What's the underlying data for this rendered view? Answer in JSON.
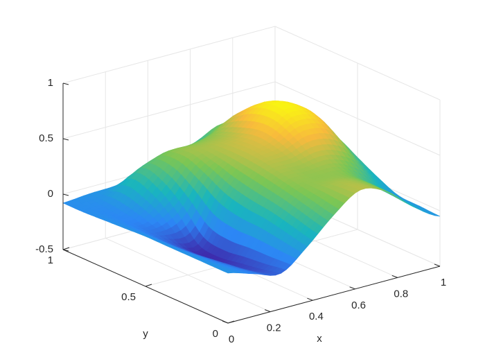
{
  "chart_data": {
    "type": "surface",
    "title": "",
    "xlabel": "x",
    "ylabel": "y",
    "zlabel": "",
    "xlim": [
      0,
      1
    ],
    "ylim": [
      0,
      1
    ],
    "zlim": [
      -0.5,
      1
    ],
    "x_ticks": [
      "0",
      "0.2",
      "0.4",
      "0.6",
      "0.8",
      "1"
    ],
    "y_ticks": [
      "0",
      "0.5",
      "1"
    ],
    "z_ticks": [
      "-0.5",
      "0",
      "0.5",
      "1"
    ],
    "grid": true,
    "colormap": "parula",
    "colors": {
      "low": "#3e26a8",
      "mid_low": "#2c87f5",
      "mid": "#27bfbc",
      "mid_high": "#a9c53b",
      "high": "#f9fb0e",
      "axis": "#262626",
      "grid": "#e6e6e6"
    },
    "surface": {
      "x": [
        0,
        0.125,
        0.25,
        0.375,
        0.5,
        0.625,
        0.75,
        0.875,
        1
      ],
      "y": [
        0,
        0.125,
        0.25,
        0.375,
        0.5,
        0.625,
        0.75,
        0.875,
        1
      ],
      "z_rows_by_y": [
        [
          -0.05,
          -0.12,
          -0.18,
          0.0,
          0.22,
          0.38,
          0.3,
          0.1,
          -0.05
        ],
        [
          -0.05,
          -0.14,
          -0.22,
          0.04,
          0.26,
          0.36,
          0.3,
          0.12,
          -0.04
        ],
        [
          -0.05,
          -0.16,
          -0.25,
          0.08,
          0.3,
          0.32,
          0.3,
          0.14,
          -0.03
        ],
        [
          -0.05,
          -0.18,
          -0.28,
          0.1,
          0.34,
          0.35,
          0.38,
          0.28,
          0.05
        ],
        [
          -0.05,
          -0.18,
          -0.25,
          0.15,
          0.37,
          0.42,
          0.52,
          0.45,
          0.15
        ],
        [
          -0.06,
          -0.14,
          -0.05,
          0.25,
          0.38,
          0.45,
          0.62,
          0.55,
          0.25
        ],
        [
          -0.07,
          -0.1,
          0.1,
          0.32,
          0.36,
          0.4,
          0.6,
          0.52,
          0.25
        ],
        [
          -0.08,
          -0.07,
          0.15,
          0.26,
          0.27,
          0.32,
          0.45,
          0.35,
          0.1
        ],
        [
          -0.08,
          -0.06,
          -0.05,
          0.0,
          0.08,
          0.15,
          0.25,
          0.15,
          0.0
        ]
      ]
    }
  }
}
